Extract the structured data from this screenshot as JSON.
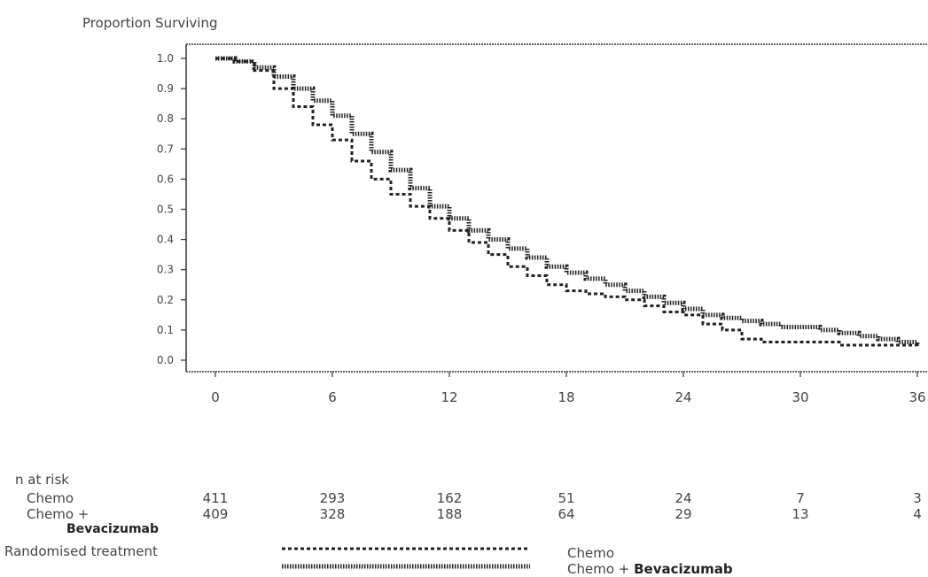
{
  "chart_data": {
    "type": "line",
    "ylabel": "Proportion Surviving",
    "xlabel": "",
    "x_ticks": [
      0,
      6,
      12,
      18,
      24,
      30,
      36
    ],
    "y_ticks": [
      "0.0",
      "0.1",
      "0.2",
      "0.3",
      "0.4",
      "0.5",
      "0.6",
      "0.7",
      "0.8",
      "0.9",
      "1.0"
    ],
    "xlim": [
      0,
      36
    ],
    "ylim": [
      0,
      1
    ],
    "series": [
      {
        "name": "Chemo",
        "style": "dashed",
        "points": [
          [
            0,
            1.0
          ],
          [
            1,
            0.99
          ],
          [
            2,
            0.96
          ],
          [
            3,
            0.9
          ],
          [
            4,
            0.84
          ],
          [
            5,
            0.78
          ],
          [
            6,
            0.73
          ],
          [
            7,
            0.66
          ],
          [
            8,
            0.6
          ],
          [
            9,
            0.55
          ],
          [
            10,
            0.51
          ],
          [
            11,
            0.47
          ],
          [
            12,
            0.43
          ],
          [
            13,
            0.39
          ],
          [
            14,
            0.35
          ],
          [
            15,
            0.31
          ],
          [
            16,
            0.28
          ],
          [
            17,
            0.25
          ],
          [
            18,
            0.23
          ],
          [
            19,
            0.22
          ],
          [
            20,
            0.21
          ],
          [
            21,
            0.2
          ],
          [
            22,
            0.18
          ],
          [
            23,
            0.16
          ],
          [
            24,
            0.15
          ],
          [
            25,
            0.12
          ],
          [
            26,
            0.1
          ],
          [
            27,
            0.07
          ],
          [
            28,
            0.06
          ],
          [
            30,
            0.06
          ],
          [
            32,
            0.05
          ],
          [
            34,
            0.05
          ],
          [
            36,
            0.04
          ]
        ]
      },
      {
        "name": "Chemo + Bevacizumab",
        "style": "dotted",
        "points": [
          [
            0,
            1.0
          ],
          [
            1,
            0.99
          ],
          [
            2,
            0.97
          ],
          [
            3,
            0.94
          ],
          [
            4,
            0.9
          ],
          [
            5,
            0.86
          ],
          [
            6,
            0.81
          ],
          [
            7,
            0.75
          ],
          [
            8,
            0.69
          ],
          [
            9,
            0.63
          ],
          [
            10,
            0.57
          ],
          [
            11,
            0.51
          ],
          [
            12,
            0.47
          ],
          [
            13,
            0.43
          ],
          [
            14,
            0.4
          ],
          [
            15,
            0.37
          ],
          [
            16,
            0.34
          ],
          [
            17,
            0.31
          ],
          [
            18,
            0.29
          ],
          [
            19,
            0.27
          ],
          [
            20,
            0.25
          ],
          [
            21,
            0.23
          ],
          [
            22,
            0.21
          ],
          [
            23,
            0.19
          ],
          [
            24,
            0.17
          ],
          [
            25,
            0.15
          ],
          [
            26,
            0.14
          ],
          [
            27,
            0.13
          ],
          [
            28,
            0.12
          ],
          [
            29,
            0.11
          ],
          [
            30,
            0.11
          ],
          [
            31,
            0.1
          ],
          [
            32,
            0.09
          ],
          [
            33,
            0.08
          ],
          [
            34,
            0.07
          ],
          [
            35,
            0.06
          ],
          [
            36,
            0.05
          ]
        ]
      }
    ]
  },
  "risk_table": {
    "title": "n at risk",
    "times": [
      0,
      6,
      12,
      18,
      24,
      30,
      36
    ],
    "rows": [
      {
        "label": "Chemo",
        "label_extra": "",
        "values": [
          "411",
          "293",
          "162",
          "51",
          "24",
          "7",
          "3"
        ]
      },
      {
        "label": "Chemo +",
        "label_extra": "Bevacizumab",
        "values": [
          "409",
          "328",
          "188",
          "64",
          "29",
          "13",
          "4"
        ]
      }
    ]
  },
  "legend": {
    "title": "Randomised treatment",
    "items": [
      {
        "label": "Chemo",
        "style": "dashed"
      },
      {
        "label": "Chemo +",
        "label_bold": "Bevacizumab",
        "style": "dotted"
      }
    ]
  },
  "colors": {
    "axis": "#333333",
    "line": "#222222",
    "text": "#444444"
  }
}
